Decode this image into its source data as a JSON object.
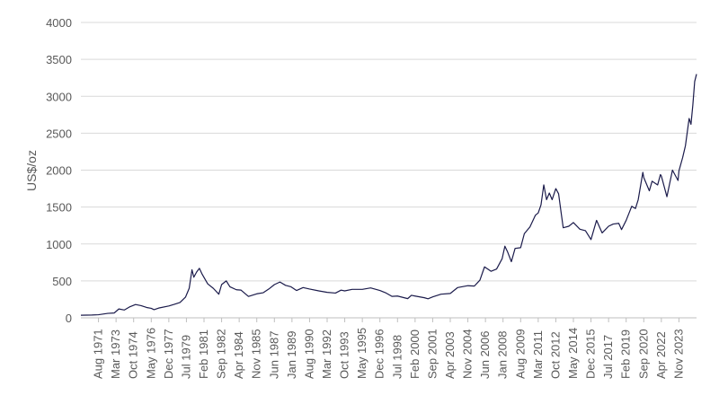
{
  "chart_data": {
    "type": "line",
    "title": "",
    "xlabel": "",
    "ylabel": "US$/oz",
    "ylim": [
      0,
      4000
    ],
    "yticks": [
      0,
      500,
      1000,
      1500,
      2000,
      2500,
      3000,
      3500,
      4000
    ],
    "grid": true,
    "legend": "none",
    "colors": {
      "line": "#1b1b4b",
      "grid": "#d9d9d9",
      "axis": "#bfbfbf",
      "text": "#595959"
    },
    "xlim": [
      "1970-01",
      "2025-06"
    ],
    "xtick_labels": [
      {
        "date": "1971-08",
        "label": "Aug 1971"
      },
      {
        "date": "1973-03",
        "label": "Mar 1973"
      },
      {
        "date": "1974-10",
        "label": "Oct 1974"
      },
      {
        "date": "1976-05",
        "label": "May 1976"
      },
      {
        "date": "1977-12",
        "label": "Dec 1977"
      },
      {
        "date": "1979-07",
        "label": "Jul 1979"
      },
      {
        "date": "1981-02",
        "label": "Feb 1981"
      },
      {
        "date": "1982-09",
        "label": "Sep 1982"
      },
      {
        "date": "1984-04",
        "label": "Apr 1984"
      },
      {
        "date": "1985-11",
        "label": "Nov 1985"
      },
      {
        "date": "1987-06",
        "label": "Jun 1987"
      },
      {
        "date": "1989-01",
        "label": "Jan 1989"
      },
      {
        "date": "1990-08",
        "label": "Aug 1990"
      },
      {
        "date": "1992-03",
        "label": "Mar 1992"
      },
      {
        "date": "1993-10",
        "label": "Oct 1993"
      },
      {
        "date": "1995-05",
        "label": "May 1995"
      },
      {
        "date": "1996-12",
        "label": "Dec 1996"
      },
      {
        "date": "1998-07",
        "label": "Jul 1998"
      },
      {
        "date": "2000-02",
        "label": "Feb 2000"
      },
      {
        "date": "2001-09",
        "label": "Sep 2001"
      },
      {
        "date": "2003-04",
        "label": "Apr 2003"
      },
      {
        "date": "2004-11",
        "label": "Nov 2004"
      },
      {
        "date": "2006-06",
        "label": "Jun 2006"
      },
      {
        "date": "2008-01",
        "label": "Jan 2008"
      },
      {
        "date": "2009-08",
        "label": "Aug 2009"
      },
      {
        "date": "2011-03",
        "label": "Mar 2011"
      },
      {
        "date": "2012-10",
        "label": "Oct 2012"
      },
      {
        "date": "2014-05",
        "label": "May 2014"
      },
      {
        "date": "2015-12",
        "label": "Dec 2015"
      },
      {
        "date": "2017-07",
        "label": "Jul 2017"
      },
      {
        "date": "2019-02",
        "label": "Feb 2019"
      },
      {
        "date": "2020-09",
        "label": "Sep 2020"
      },
      {
        "date": "2022-04",
        "label": "Apr 2022"
      },
      {
        "date": "2023-11",
        "label": "Nov 2023"
      }
    ],
    "series": [
      {
        "points": [
          [
            "1970-01",
            35
          ],
          [
            "1971-01",
            38
          ],
          [
            "1971-08",
            42
          ],
          [
            "1972-06",
            60
          ],
          [
            "1973-01",
            65
          ],
          [
            "1973-06",
            120
          ],
          [
            "1973-12",
            106
          ],
          [
            "1974-06",
            150
          ],
          [
            "1974-12",
            180
          ],
          [
            "1975-06",
            165
          ],
          [
            "1975-12",
            140
          ],
          [
            "1976-05",
            128
          ],
          [
            "1976-08",
            110
          ],
          [
            "1977-01",
            132
          ],
          [
            "1977-12",
            160
          ],
          [
            "1978-06",
            183
          ],
          [
            "1978-12",
            208
          ],
          [
            "1979-06",
            280
          ],
          [
            "1979-10",
            400
          ],
          [
            "1980-01",
            650
          ],
          [
            "1980-03",
            550
          ],
          [
            "1980-06",
            620
          ],
          [
            "1980-09",
            670
          ],
          [
            "1980-12",
            590
          ],
          [
            "1981-06",
            460
          ],
          [
            "1981-12",
            400
          ],
          [
            "1982-06",
            320
          ],
          [
            "1982-09",
            450
          ],
          [
            "1983-02",
            500
          ],
          [
            "1983-06",
            420
          ],
          [
            "1984-01",
            380
          ],
          [
            "1984-06",
            375
          ],
          [
            "1985-02",
            290
          ],
          [
            "1985-11",
            325
          ],
          [
            "1986-06",
            340
          ],
          [
            "1986-12",
            390
          ],
          [
            "1987-06",
            450
          ],
          [
            "1987-12",
            485
          ],
          [
            "1988-06",
            440
          ],
          [
            "1988-12",
            420
          ],
          [
            "1989-06",
            370
          ],
          [
            "1990-01",
            410
          ],
          [
            "1990-08",
            390
          ],
          [
            "1991-06",
            365
          ],
          [
            "1992-03",
            345
          ],
          [
            "1992-12",
            335
          ],
          [
            "1993-06",
            375
          ],
          [
            "1993-10",
            365
          ],
          [
            "1994-06",
            385
          ],
          [
            "1995-05",
            385
          ],
          [
            "1996-02",
            405
          ],
          [
            "1996-12",
            370
          ],
          [
            "1997-06",
            340
          ],
          [
            "1998-01",
            290
          ],
          [
            "1998-07",
            295
          ],
          [
            "1999-06",
            260
          ],
          [
            "1999-10",
            305
          ],
          [
            "2000-02",
            295
          ],
          [
            "2000-12",
            272
          ],
          [
            "2001-04",
            258
          ],
          [
            "2001-09",
            283
          ],
          [
            "2002-06",
            320
          ],
          [
            "2003-04",
            330
          ],
          [
            "2003-12",
            410
          ],
          [
            "2004-11",
            435
          ],
          [
            "2005-06",
            430
          ],
          [
            "2005-12",
            510
          ],
          [
            "2006-05",
            690
          ],
          [
            "2006-12",
            630
          ],
          [
            "2007-06",
            660
          ],
          [
            "2007-12",
            800
          ],
          [
            "2008-03",
            970
          ],
          [
            "2008-06",
            890
          ],
          [
            "2008-10",
            760
          ],
          [
            "2009-02",
            940
          ],
          [
            "2009-08",
            950
          ],
          [
            "2009-12",
            1140
          ],
          [
            "2010-06",
            1230
          ],
          [
            "2010-12",
            1390
          ],
          [
            "2011-03",
            1420
          ],
          [
            "2011-06",
            1530
          ],
          [
            "2011-09",
            1800
          ],
          [
            "2011-12",
            1600
          ],
          [
            "2012-03",
            1690
          ],
          [
            "2012-06",
            1600
          ],
          [
            "2012-10",
            1750
          ],
          [
            "2013-01",
            1680
          ],
          [
            "2013-04",
            1400
          ],
          [
            "2013-06",
            1220
          ],
          [
            "2013-12",
            1240
          ],
          [
            "2014-05",
            1290
          ],
          [
            "2014-12",
            1200
          ],
          [
            "2015-06",
            1180
          ],
          [
            "2015-12",
            1060
          ],
          [
            "2016-06",
            1320
          ],
          [
            "2016-12",
            1150
          ],
          [
            "2017-07",
            1240
          ],
          [
            "2017-12",
            1270
          ],
          [
            "2018-06",
            1280
          ],
          [
            "2018-09",
            1195
          ],
          [
            "2019-02",
            1320
          ],
          [
            "2019-08",
            1510
          ],
          [
            "2019-12",
            1480
          ],
          [
            "2020-03",
            1600
          ],
          [
            "2020-08",
            1970
          ],
          [
            "2020-09",
            1900
          ],
          [
            "2021-03",
            1720
          ],
          [
            "2021-06",
            1850
          ],
          [
            "2021-12",
            1800
          ],
          [
            "2022-03",
            1940
          ],
          [
            "2022-04",
            1920
          ],
          [
            "2022-10",
            1640
          ],
          [
            "2023-04",
            2000
          ],
          [
            "2023-10",
            1860
          ],
          [
            "2023-11",
            1990
          ],
          [
            "2024-03",
            2170
          ],
          [
            "2024-06",
            2330
          ],
          [
            "2024-10",
            2700
          ],
          [
            "2024-12",
            2620
          ],
          [
            "2025-02",
            2880
          ],
          [
            "2025-04",
            3200
          ],
          [
            "2025-06",
            3300
          ]
        ]
      }
    ]
  }
}
